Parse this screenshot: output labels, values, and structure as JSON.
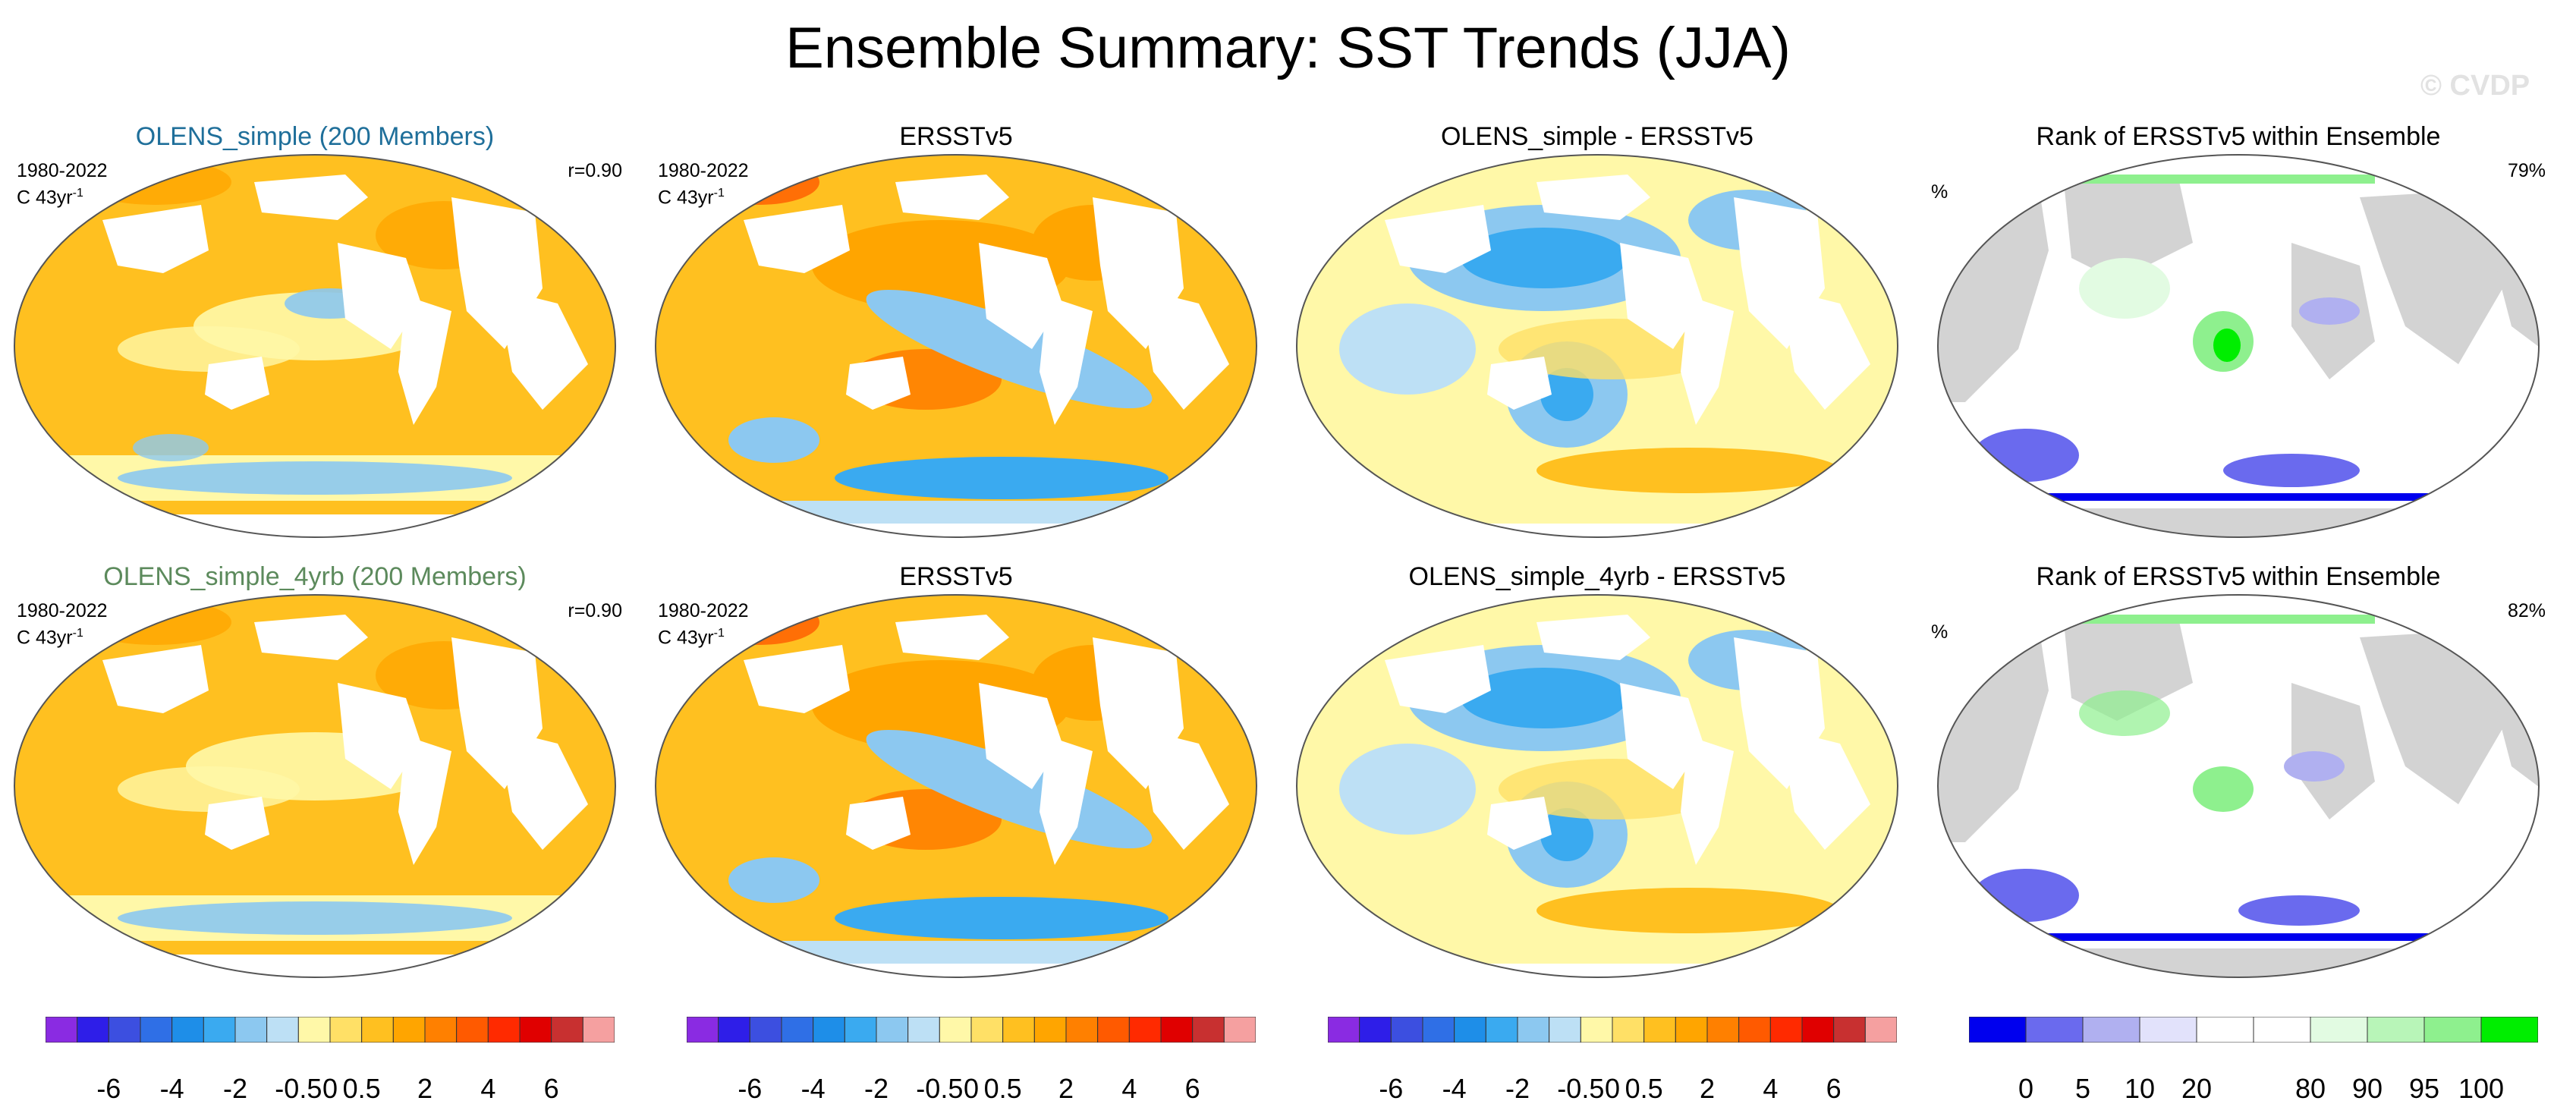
{
  "title": "Ensemble Summary: SST Trends (JJA)",
  "watermark": "© CVDP",
  "panels": [
    {
      "title": "OLENS_simple (200 Members)",
      "period": "1980-2022",
      "units": "C 43yr",
      "units_exp": "-1",
      "corner": "r=0.90"
    },
    {
      "title": "ERSSTv5",
      "period": "1980-2022",
      "units": "C 43yr",
      "units_exp": "-1"
    },
    {
      "title": "OLENS_simple - ERSSTv5"
    },
    {
      "title": "Rank of ERSSTv5 within Ensemble",
      "unit_label": "%",
      "corner": "79%"
    },
    {
      "title": "OLENS_simple_4yrb (200 Members)",
      "period": "1980-2022",
      "units": "C 43yr",
      "units_exp": "-1",
      "corner": "r=0.90"
    },
    {
      "title": "ERSSTv5",
      "period": "1980-2022",
      "units": "C 43yr",
      "units_exp": "-1"
    },
    {
      "title": "OLENS_simple_4yrb - ERSSTv5"
    },
    {
      "title": "Rank of ERSSTv5 within Ensemble",
      "unit_label": "%",
      "corner": "82%"
    }
  ],
  "colorbars": {
    "trend": {
      "colors": [
        "#8a2be2",
        "#2e1ee8",
        "#3c4fe0",
        "#2f6fe6",
        "#1e8ee8",
        "#3aaaf0",
        "#8cc8f0",
        "#bde0f5",
        "#fff8a8",
        "#ffe066",
        "#ffc020",
        "#ffa500",
        "#ff8000",
        "#ff5a00",
        "#ff2a00",
        "#e00000",
        "#c83030",
        "#f5a0a0"
      ],
      "labels": [
        "-6",
        "-4",
        "-2",
        "-0.5",
        "0",
        "0.5",
        "2",
        "4",
        "6"
      ]
    },
    "rank": {
      "colors": [
        "#0000ee",
        "#6a6aee",
        "#b0b0f0",
        "#e2e2fb",
        "#ffffff",
        "#ffffff",
        "#e2fbe2",
        "#b8f5b8",
        "#8ef08e",
        "#00ee00"
      ],
      "labels": [
        "0",
        "5",
        "10",
        "20",
        "80",
        "90",
        "95",
        "100"
      ]
    }
  },
  "colors": {
    "ocean_white": "#ffffff",
    "land_gray": "#d3d3d3",
    "blue_title": "#1f6f9a",
    "green_title": "#5c8a5c"
  }
}
